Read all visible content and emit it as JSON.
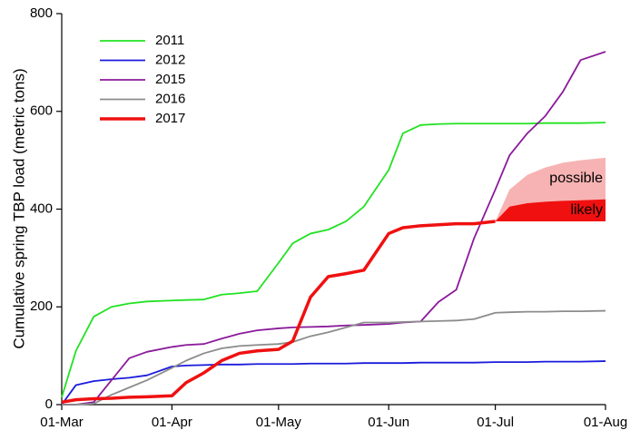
{
  "chart_data": {
    "type": "line",
    "y_label": "Cumulative spring TBP load (metric tons)",
    "x": [
      "01-Mar",
      "05-Mar",
      "10-Mar",
      "15-Mar",
      "20-Mar",
      "25-Mar",
      "01-Apr",
      "05-Apr",
      "10-Apr",
      "15-Apr",
      "20-Apr",
      "25-Apr",
      "01-May",
      "05-May",
      "10-May",
      "15-May",
      "20-May",
      "25-May",
      "01-Jun",
      "05-Jun",
      "10-Jun",
      "15-Jun",
      "20-Jun",
      "25-Jun",
      "01-Jul",
      "05-Jul",
      "10-Jul",
      "15-Jul",
      "20-Jul",
      "25-Jul",
      "01-Aug"
    ],
    "xlim": [
      "01-Mar",
      "01-Aug"
    ],
    "xticks": [
      "01-Mar",
      "01-Apr",
      "01-May",
      "01-Jun",
      "01-Jul",
      "01-Aug"
    ],
    "ylim": [
      0,
      800
    ],
    "yticks": [
      0,
      200,
      400,
      600,
      800
    ],
    "legend_position": "upper left",
    "series": [
      {
        "name": "2011",
        "color": "#22e222",
        "line_width": 1.8,
        "values": [
          15,
          110,
          180,
          200,
          207,
          211,
          213,
          214,
          215,
          225,
          228,
          232,
          290,
          330,
          350,
          358,
          375,
          405,
          480,
          555,
          572,
          574,
          575,
          575,
          575,
          575,
          575,
          576,
          576,
          576,
          577
        ]
      },
      {
        "name": "2012",
        "color": "#1a1adc",
        "line_width": 1.8,
        "values": [
          0,
          40,
          48,
          52,
          55,
          60,
          78,
          80,
          81,
          82,
          82,
          83,
          83,
          83,
          84,
          84,
          84,
          85,
          85,
          85,
          86,
          86,
          86,
          86,
          87,
          87,
          87,
          88,
          88,
          88,
          89
        ]
      },
      {
        "name": "2015",
        "color": "#8b1a9b",
        "line_width": 1.8,
        "values": [
          0,
          0,
          5,
          50,
          95,
          108,
          118,
          122,
          124,
          135,
          145,
          152,
          156,
          158,
          159,
          160,
          162,
          163,
          165,
          168,
          170,
          210,
          235,
          340,
          440,
          510,
          555,
          590,
          640,
          705,
          722
        ]
      },
      {
        "name": "2016",
        "color": "#8c8c8c",
        "line_width": 1.8,
        "values": [
          0,
          0,
          2,
          20,
          35,
          50,
          75,
          90,
          105,
          115,
          120,
          122,
          124,
          128,
          140,
          148,
          158,
          168,
          168,
          169,
          170,
          171,
          172,
          175,
          188,
          189,
          190,
          190,
          191,
          191,
          192
        ]
      },
      {
        "name": "2017",
        "color": "#f01010",
        "line_width": 3.5,
        "values": [
          5,
          10,
          12,
          13,
          15,
          16,
          18,
          45,
          65,
          90,
          105,
          110,
          113,
          130,
          220,
          262,
          268,
          275,
          350,
          362,
          366,
          368,
          370,
          370,
          375,
          null,
          null,
          null,
          null,
          null,
          null
        ]
      }
    ],
    "bands": [
      {
        "label": "possible",
        "color": "#f7b3b3",
        "x": [
          "01-Jul",
          "05-Jul",
          "10-Jul",
          "15-Jul",
          "20-Jul",
          "25-Jul",
          "01-Aug"
        ],
        "lower": [
          375,
          375,
          375,
          375,
          375,
          375,
          375
        ],
        "upper": [
          375,
          440,
          470,
          485,
          495,
          500,
          505
        ]
      },
      {
        "label": "likely",
        "color": "#f01010",
        "x": [
          "01-Jul",
          "05-Jul",
          "10-Jul",
          "15-Jul",
          "20-Jul",
          "25-Jul",
          "01-Aug"
        ],
        "lower": [
          375,
          375,
          375,
          375,
          375,
          375,
          375
        ],
        "upper": [
          375,
          405,
          412,
          415,
          417,
          418,
          420
        ]
      }
    ]
  }
}
